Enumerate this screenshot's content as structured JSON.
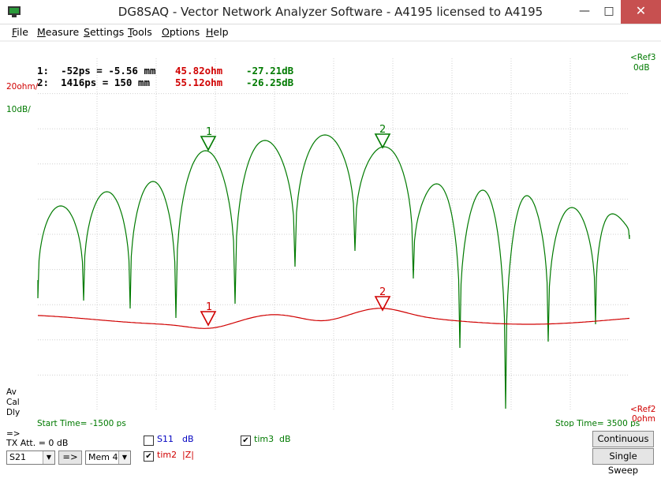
{
  "window": {
    "title": "DG8SAQ  -  Vector Network Analyzer Software  - A4195 licensed to A4195",
    "minimize": "—",
    "maximize": "□",
    "close": "✕"
  },
  "menu": [
    {
      "underline": "F",
      "rest": "ile"
    },
    {
      "underline": "M",
      "rest": "easure"
    },
    {
      "underline": "S",
      "rest": "ettings"
    },
    {
      "underline": "T",
      "rest": "ools"
    },
    {
      "underline": "O",
      "rest": "ptions"
    },
    {
      "underline": "H",
      "rest": "elp"
    }
  ],
  "markers_readout": [
    {
      "label": "1:",
      "time": "-52ps = -5.56 mm",
      "impedance": "45.82ohm",
      "db": "-27.21dB"
    },
    {
      "label": "2:",
      "time": "1416ps = 150 mm",
      "impedance": "55.12ohm",
      "db": "-26.25dB"
    }
  ],
  "scale": {
    "left_red": "20ohm/",
    "left_green": "10dB/",
    "right_top_1": "<Ref3",
    "right_top_2": "0dB",
    "right_bottom_1": "<Ref2",
    "right_bottom_2": "0ohm"
  },
  "status": {
    "av": "Av",
    "cal": "Cal",
    "dly": "Dly"
  },
  "time_axis": {
    "start": "Start Time= -1500 ps",
    "stop": "Stop Time= 3500 ps"
  },
  "marker_labels": {
    "m1": "1",
    "m2": "2"
  },
  "controls": {
    "arrow_label": "=>",
    "tx_att": "TX Att. = 0 dB",
    "s_param_select": "S21",
    "transfer_button": "=>",
    "memory_select": "Mem 4",
    "continuous_button": "Continuous",
    "single_sweep_button": "Single Sweep"
  },
  "traces": [
    {
      "name": "S11",
      "unit": "dB",
      "checked": false,
      "check_mark": "",
      "color": "#0000c0"
    },
    {
      "name": "tim2",
      "unit": "|Z|",
      "checked": true,
      "check_mark": "✔",
      "color": "#d00000"
    },
    {
      "name": "tim3",
      "unit": "dB",
      "checked": true,
      "check_mark": "✔",
      "color": "#007a00"
    }
  ],
  "colors": {
    "green_trace": "#007a00",
    "red_trace": "#d00000",
    "grid": "#d0d0d0"
  }
}
